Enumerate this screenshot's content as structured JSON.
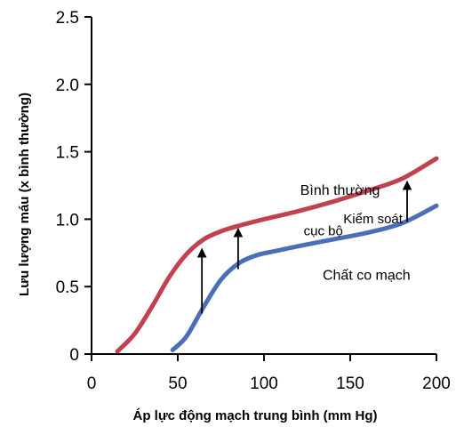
{
  "chart_data": {
    "type": "line",
    "xlabel": "Áp lực động mạch trung bình (mm Hg)",
    "ylabel": "Lưu lượng máu (x bình thường)",
    "xlim": [
      0,
      200
    ],
    "ylim": [
      0,
      2.5
    ],
    "xticks": [
      "0",
      "50",
      "100",
      "150",
      "200"
    ],
    "yticks": [
      "0",
      "0.5",
      "1.0",
      "1.5",
      "2.0",
      "2.5"
    ],
    "grid": false,
    "series": [
      {
        "name": "Bình thường",
        "color": "#c0424f",
        "x": [
          15,
          25,
          35,
          45,
          55,
          65,
          75,
          85,
          100,
          120,
          140,
          160,
          180,
          200
        ],
        "y": [
          0.02,
          0.15,
          0.35,
          0.57,
          0.74,
          0.85,
          0.91,
          0.95,
          1.0,
          1.06,
          1.13,
          1.21,
          1.3,
          1.45
        ]
      },
      {
        "name": "Chất co mạch",
        "color": "#4a6fb8",
        "x": [
          47,
          55,
          65,
          75,
          85,
          95,
          105,
          120,
          140,
          160,
          180,
          200
        ],
        "y": [
          0.03,
          0.13,
          0.35,
          0.55,
          0.67,
          0.73,
          0.76,
          0.8,
          0.85,
          0.9,
          0.97,
          1.1
        ]
      }
    ],
    "arrows": [
      {
        "x": 64,
        "y_from": 0.3,
        "y_to": 0.78
      },
      {
        "x": 85,
        "y_from": 0.63,
        "y_to": 0.93
      },
      {
        "x": 183,
        "y_from": 0.98,
        "y_to": 1.28
      }
    ],
    "annotations": [
      {
        "id": "normal",
        "text": "Bình thường",
        "x": 121,
        "y": 1.18
      },
      {
        "id": "local1",
        "text": "Kiểm soát",
        "x": 146,
        "y": 0.97
      },
      {
        "id": "local2",
        "text": "cục bộ",
        "x": 123,
        "y": 0.88
      },
      {
        "id": "vaso",
        "text": "Chất co mạch",
        "x": 134,
        "y": 0.55
      }
    ]
  }
}
